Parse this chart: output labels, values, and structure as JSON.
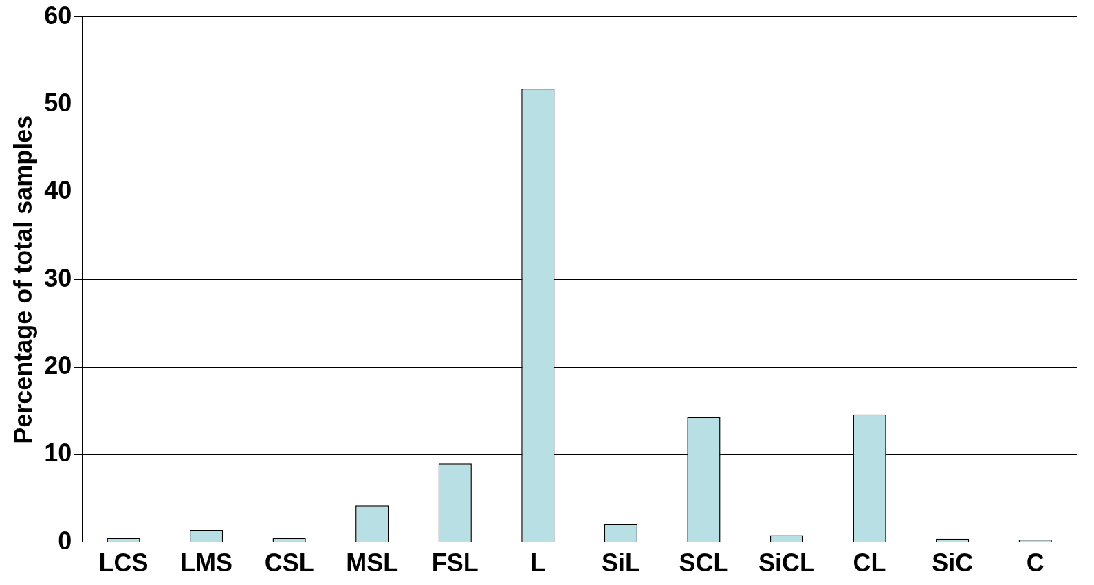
{
  "chart_data": {
    "type": "bar",
    "ylabel": "Percentage of total samples",
    "categories": [
      "LCS",
      "LMS",
      "CSL",
      "MSL",
      "FSL",
      "L",
      "SiL",
      "SCL",
      "SiCL",
      "CL",
      "SiC",
      "C"
    ],
    "values": [
      0.5,
      1.4,
      0.5,
      4.2,
      9.0,
      51.8,
      2.1,
      14.3,
      0.8,
      14.6,
      0.4,
      0.3
    ],
    "color": "#b8e0e4",
    "ylim": [
      0,
      60
    ],
    "yticks": [
      0,
      10,
      20,
      30,
      40,
      50,
      60
    ],
    "grid": "y",
    "legend": false
  }
}
